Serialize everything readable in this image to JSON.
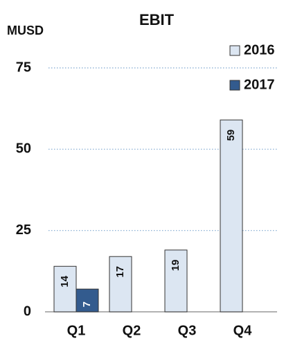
{
  "chart_data": {
    "type": "bar",
    "title": "EBIT",
    "y_label": "MUSD",
    "categories": [
      "Q1",
      "Q2",
      "Q3",
      "Q4"
    ],
    "series": [
      {
        "name": "2016",
        "color": "#dce6f2",
        "values": [
          14,
          17,
          19,
          59
        ]
      },
      {
        "name": "2017",
        "color": "#335b8e",
        "values": [
          7,
          null,
          null,
          null
        ]
      }
    ],
    "ylim": [
      0,
      75
    ],
    "yticks": [
      0,
      25,
      50,
      75
    ],
    "grid": true,
    "legend": "upper right"
  }
}
